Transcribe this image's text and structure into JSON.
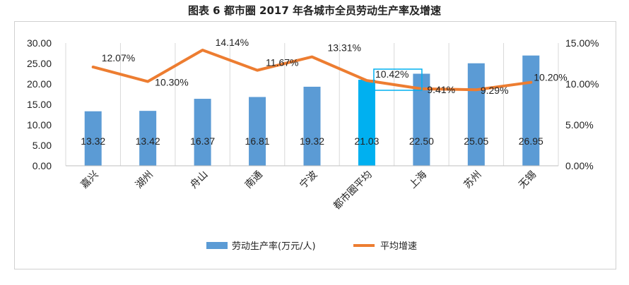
{
  "chart_data": {
    "type": "bar",
    "title": "图表 6 都市圈 2017 年各城市全员劳动生产率及增速",
    "categories": [
      "嘉兴",
      "湖州",
      "舟山",
      "南通",
      "宁波",
      "都市圈平均",
      "上海",
      "苏州",
      "无锡"
    ],
    "series": [
      {
        "name": "劳动生产率(万元/人)",
        "type": "bar",
        "axis": "left",
        "values": [
          13.32,
          13.42,
          16.37,
          16.81,
          19.32,
          21.03,
          22.5,
          25.05,
          26.95
        ],
        "labels": [
          "13.32",
          "13.42",
          "16.37",
          "16.81",
          "19.32",
          "21.03",
          "22.50",
          "25.05",
          "26.95"
        ],
        "color": "#5b9bd5",
        "highlight_index": 5,
        "highlight_color": "#00b0f0"
      },
      {
        "name": "平均增速",
        "type": "line",
        "axis": "right",
        "values": [
          12.07,
          10.3,
          14.14,
          11.67,
          13.31,
          10.42,
          9.41,
          9.29,
          10.2
        ],
        "labels": [
          "12.07%",
          "10.30%",
          "14.14%",
          "11.67%",
          "13.31%",
          "10.42%",
          "9.41%",
          "9.29%",
          "10.20%"
        ],
        "color": "#ed7d31"
      }
    ],
    "y_left": {
      "min": 0,
      "max": 30,
      "step": 5,
      "ticks": [
        "0.00",
        "5.00",
        "10.00",
        "15.00",
        "20.00",
        "25.00",
        "30.00"
      ]
    },
    "y_right": {
      "min": 0,
      "max": 15,
      "step": 5,
      "ticks": [
        "0.00%",
        "5.00%",
        "10.00%",
        "15.00%"
      ]
    },
    "legend": {
      "position": "bottom",
      "items": [
        "劳动生产率(万元/人)",
        "平均增速"
      ]
    }
  }
}
